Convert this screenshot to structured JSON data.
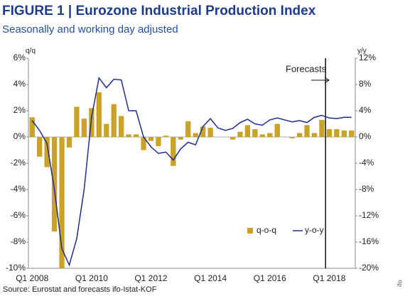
{
  "chart_data": {
    "type": "bar-line",
    "title": "FIGURE 1 | Eurozone Industrial Production Index",
    "subtitle": "Seasonally and working day adjusted",
    "y_label": "q/q",
    "y2_label": "y/y",
    "source": "Source: Eurostat and forecasts ifo-Istat-KOF",
    "credit": "ifo",
    "annotation": "Forecasts",
    "categories": [
      "Q1 2008",
      null,
      null,
      null,
      null,
      null,
      null,
      null,
      "Q1 2010",
      null,
      null,
      null,
      null,
      null,
      null,
      null,
      "Q1 2012",
      null,
      null,
      null,
      null,
      null,
      null,
      null,
      "Q1 2014",
      null,
      null,
      null,
      null,
      null,
      null,
      null,
      "Q1 2016",
      null,
      null,
      null,
      null,
      null,
      null,
      null,
      "Q1 2018",
      null,
      null,
      null
    ],
    "series": [
      {
        "name": "q-o-q",
        "color": "#c9a227",
        "axis": "y",
        "kind": "bar",
        "values": [
          1.5,
          -1.5,
          -2.3,
          -7.2,
          -10,
          -0.8,
          2.3,
          1.4,
          2.2,
          3.4,
          1.0,
          2.5,
          1.6,
          0.2,
          0.2,
          -1.0,
          -0.3,
          -0.7,
          0.1,
          -2.2,
          -0.2,
          1.2,
          0.3,
          0.8,
          0.7,
          0.0,
          0.0,
          -0.2,
          0.4,
          0.9,
          0.6,
          0.2,
          0.3,
          1.0,
          0.0,
          -0.1,
          0.3,
          0.9,
          0.3,
          1.3,
          0.6,
          0.6,
          0.5,
          0.5
        ]
      },
      {
        "name": "y-o-y",
        "color": "#1f2d8c",
        "axis": "y2",
        "kind": "line",
        "values": [
          2.5,
          1.0,
          -1.0,
          -8.0,
          -17,
          -19.5,
          -15.5,
          -8,
          3,
          9,
          7.5,
          8.8,
          8.7,
          4,
          4,
          0,
          -1.5,
          -2.5,
          -2.3,
          -3.5,
          -1.8,
          -0.8,
          -1.2,
          1.6,
          2.8,
          1.4,
          1.0,
          1.3,
          2.2,
          2.7,
          2.0,
          1.8,
          2.6,
          2.9,
          2.6,
          2.3,
          2.5,
          2.2,
          3.0,
          3.3,
          2.9,
          2.8,
          3.0,
          3.0
        ]
      }
    ],
    "ylim": [
      -10,
      6
    ],
    "yticks": [
      {
        "value": 6,
        "label": "6%"
      },
      {
        "value": 4,
        "label": "4%"
      },
      {
        "value": 2,
        "label": "2%"
      },
      {
        "value": 0,
        "label": "0%"
      },
      {
        "value": -2,
        "label": "-2%"
      },
      {
        "value": -4,
        "label": "-4%"
      },
      {
        "value": -6,
        "label": "-6%"
      },
      {
        "value": -8,
        "label": "-8%"
      },
      {
        "value": -10,
        "label": "-10%"
      }
    ],
    "y2lim": [
      -20,
      12
    ],
    "y2ticks": [
      {
        "value": 12,
        "label": "12%"
      },
      {
        "value": 8,
        "label": "8%"
      },
      {
        "value": 4,
        "label": "4%"
      },
      {
        "value": 0,
        "label": "0%"
      },
      {
        "value": -4,
        "label": "-4%"
      },
      {
        "value": -8,
        "label": "-8%"
      },
      {
        "value": -12,
        "label": "-12%"
      },
      {
        "value": -16,
        "label": "-16%"
      },
      {
        "value": -20,
        "label": "-20%"
      }
    ],
    "grid": false,
    "legend": "lower right"
  }
}
